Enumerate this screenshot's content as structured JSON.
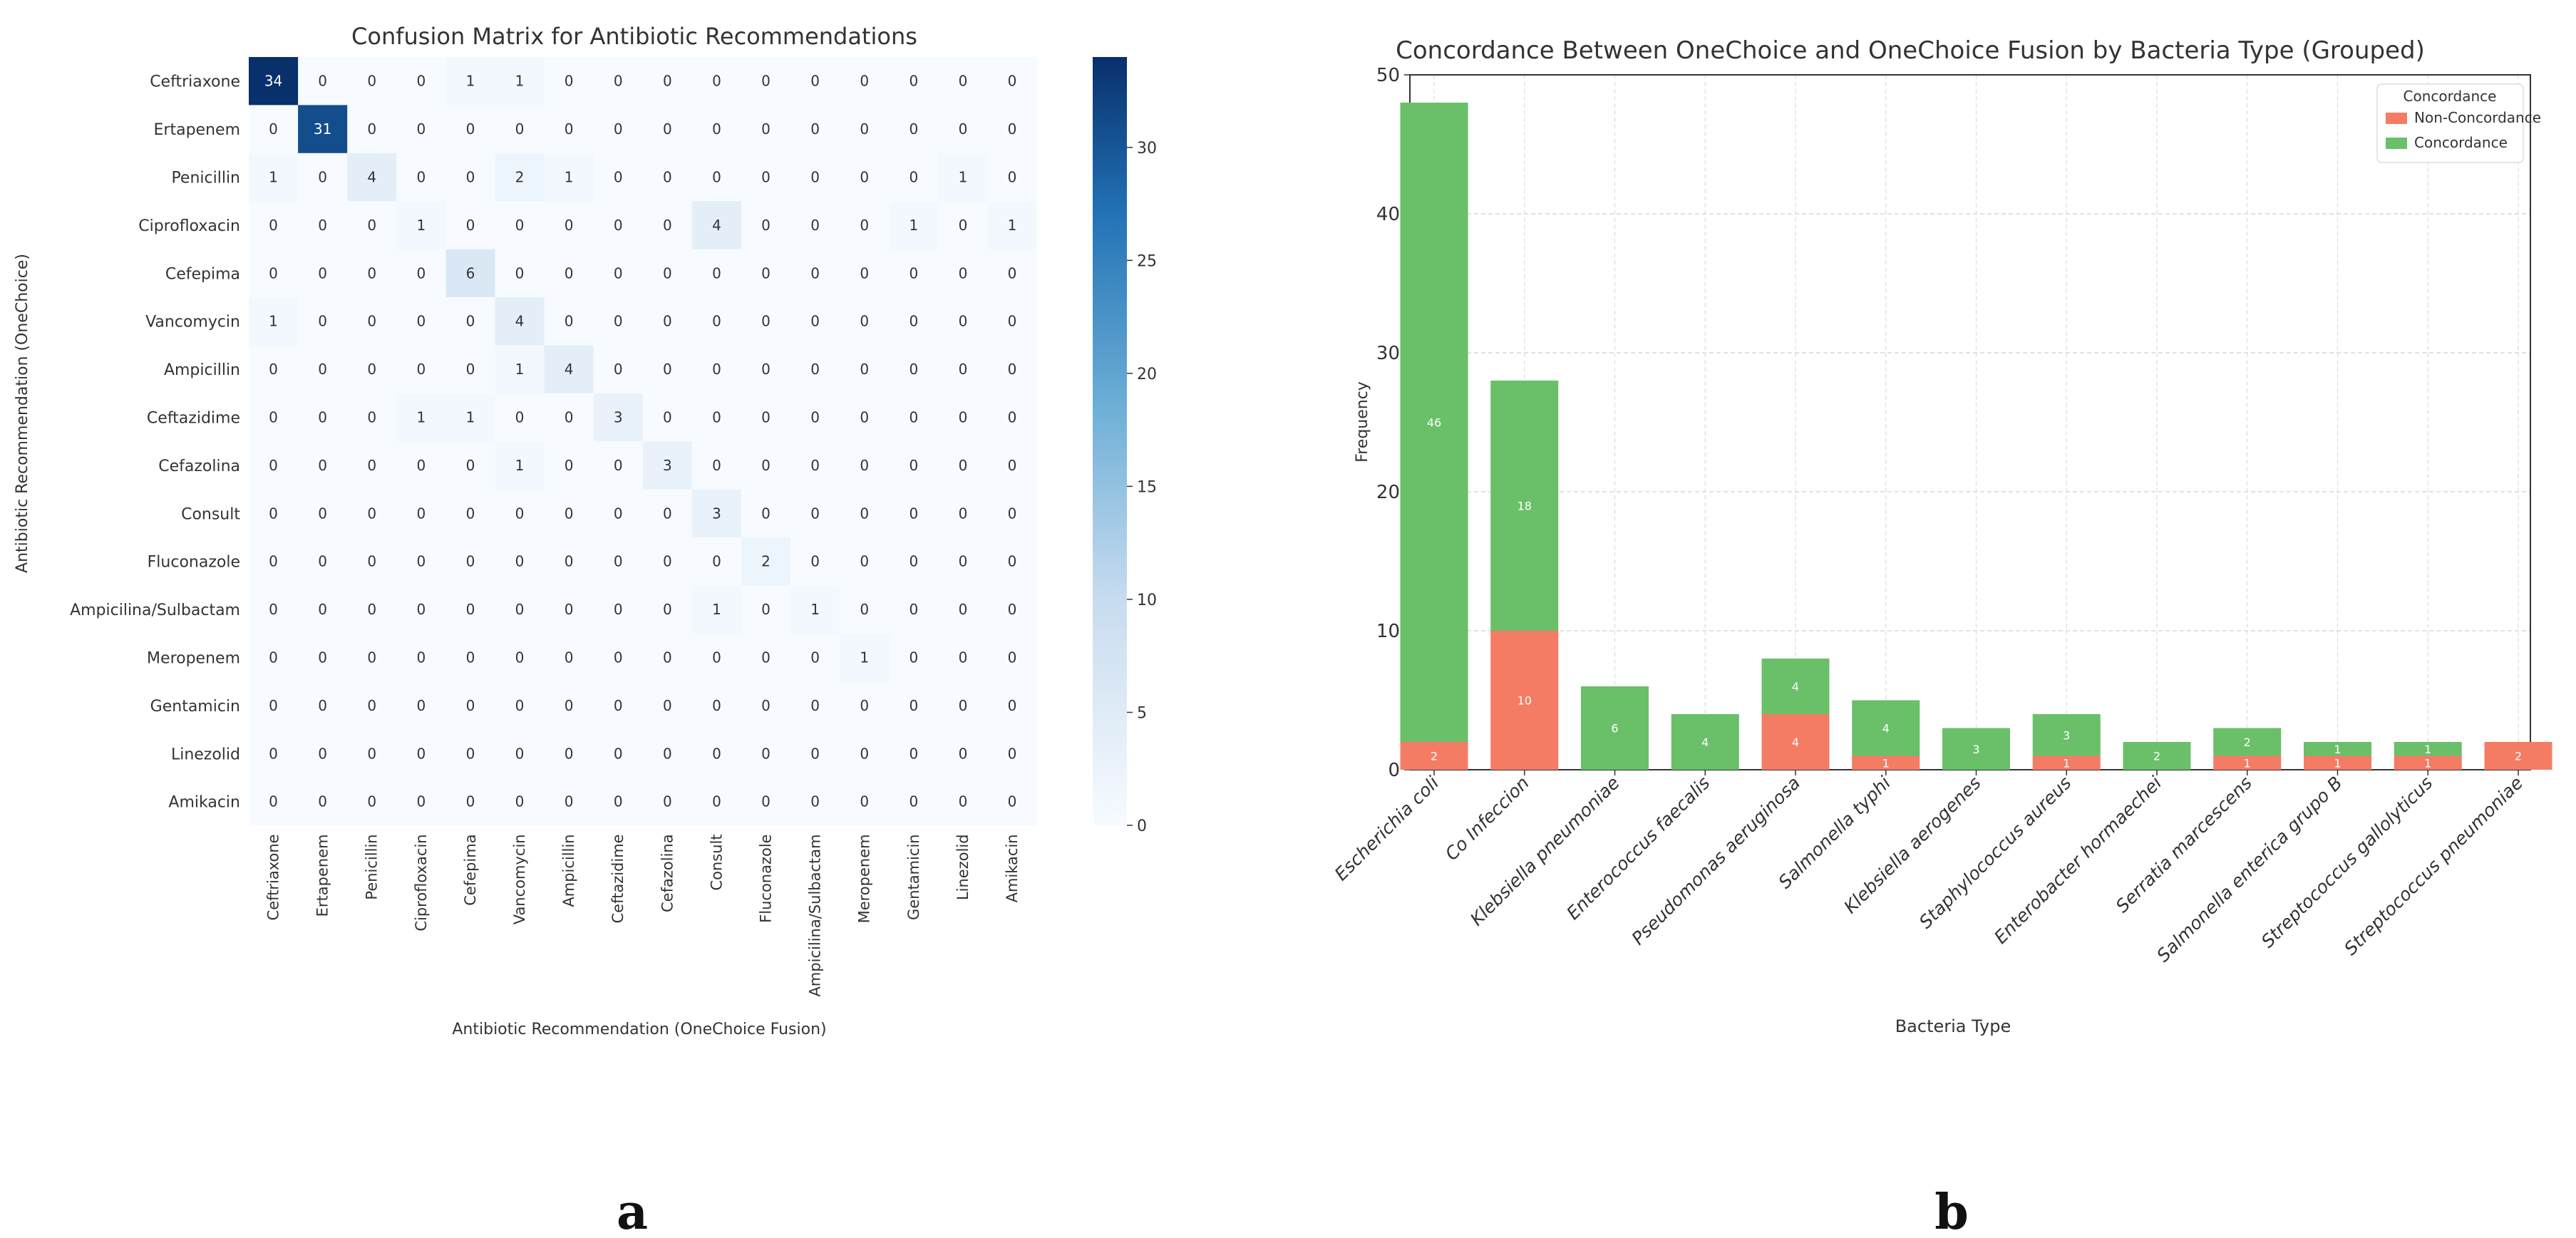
{
  "panel_labels": [
    "a",
    "b"
  ],
  "chart_data": [
    {
      "type": "heatmap",
      "title": "Confusion Matrix for Antibiotic Recommendations",
      "xlabel": "Antibiotic Recommendation (OneChoice Fusion)",
      "ylabel": "Antibiotic Recommendation (OneChoice)",
      "row_labels": [
        "Ceftriaxone",
        "Ertapenem",
        "Penicillin",
        "Ciprofloxacin",
        "Cefepima",
        "Vancomycin",
        "Ampicillin",
        "Ceftazidime",
        "Cefazolina",
        "Consult",
        "Fluconazole",
        "Ampicilina/Sulbactam",
        "Meropenem",
        "Gentamicin",
        "Linezolid",
        "Amikacin"
      ],
      "col_labels": [
        "Ceftriaxone",
        "Ertapenem",
        "Penicillin",
        "Ciprofloxacin",
        "Cefepima",
        "Vancomycin",
        "Ampicillin",
        "Ceftazidime",
        "Cefazolina",
        "Consult",
        "Fluconazole",
        "Ampicilina/Sulbactam",
        "Meropenem",
        "Gentamicin",
        "Linezolid",
        "Amikacin"
      ],
      "matrix": [
        [
          34,
          0,
          0,
          0,
          1,
          1,
          0,
          0,
          0,
          0,
          0,
          0,
          0,
          0,
          0,
          0
        ],
        [
          0,
          31,
          0,
          0,
          0,
          0,
          0,
          0,
          0,
          0,
          0,
          0,
          0,
          0,
          0,
          0
        ],
        [
          1,
          0,
          4,
          0,
          0,
          2,
          1,
          0,
          0,
          0,
          0,
          0,
          0,
          0,
          1,
          0
        ],
        [
          0,
          0,
          0,
          1,
          0,
          0,
          0,
          0,
          0,
          4,
          0,
          0,
          0,
          1,
          0,
          1
        ],
        [
          0,
          0,
          0,
          0,
          6,
          0,
          0,
          0,
          0,
          0,
          0,
          0,
          0,
          0,
          0,
          0
        ],
        [
          1,
          0,
          0,
          0,
          0,
          4,
          0,
          0,
          0,
          0,
          0,
          0,
          0,
          0,
          0,
          0
        ],
        [
          0,
          0,
          0,
          0,
          0,
          1,
          4,
          0,
          0,
          0,
          0,
          0,
          0,
          0,
          0,
          0
        ],
        [
          0,
          0,
          0,
          1,
          1,
          0,
          0,
          3,
          0,
          0,
          0,
          0,
          0,
          0,
          0,
          0
        ],
        [
          0,
          0,
          0,
          0,
          0,
          1,
          0,
          0,
          3,
          0,
          0,
          0,
          0,
          0,
          0,
          0
        ],
        [
          0,
          0,
          0,
          0,
          0,
          0,
          0,
          0,
          0,
          3,
          0,
          0,
          0,
          0,
          0,
          0
        ],
        [
          0,
          0,
          0,
          0,
          0,
          0,
          0,
          0,
          0,
          0,
          2,
          0,
          0,
          0,
          0,
          0
        ],
        [
          0,
          0,
          0,
          0,
          0,
          0,
          0,
          0,
          0,
          1,
          0,
          1,
          0,
          0,
          0,
          0
        ],
        [
          0,
          0,
          0,
          0,
          0,
          0,
          0,
          0,
          0,
          0,
          0,
          0,
          1,
          0,
          0,
          0
        ],
        [
          0,
          0,
          0,
          0,
          0,
          0,
          0,
          0,
          0,
          0,
          0,
          0,
          0,
          0,
          0,
          0
        ],
        [
          0,
          0,
          0,
          0,
          0,
          0,
          0,
          0,
          0,
          0,
          0,
          0,
          0,
          0,
          0,
          0
        ],
        [
          0,
          0,
          0,
          0,
          0,
          0,
          0,
          0,
          0,
          0,
          0,
          0,
          0,
          0,
          0,
          0
        ]
      ],
      "colorbar": {
        "min": 0,
        "max": 34,
        "ticks": [
          0,
          5,
          10,
          15,
          20,
          25,
          30
        ]
      },
      "colormap": {
        "low": "#f7fbff",
        "high": "#08306b"
      }
    },
    {
      "type": "bar",
      "stacked": true,
      "title": "Concordance Between OneChoice and OneChoice Fusion by Bacteria Type (Grouped)",
      "xlabel": "Bacteria Type",
      "ylabel": "Frequency",
      "ylim": [
        0,
        50
      ],
      "yticks": [
        0,
        10,
        20,
        30,
        40,
        50
      ],
      "grid": true,
      "categories": [
        "Escherichia coli",
        "Co Infeccion",
        "Klebsiella pneumoniae",
        "Enterococcus faecalis",
        "Pseudomonas aeruginosa",
        "Salmonella typhi",
        "Klebsiella aerogenes",
        "Staphylococcus aureus",
        "Enterobacter hormaechei",
        "Serratia marcescens",
        "Salmonella enterica grupo B",
        "Streptococcus gallolyticus",
        "Streptococcus pneumoniae"
      ],
      "series": [
        {
          "name": "Non-Concordance",
          "color": "#f47c64",
          "values": [
            2,
            10,
            0,
            0,
            4,
            1,
            0,
            1,
            0,
            1,
            1,
            1,
            2
          ]
        },
        {
          "name": "Concordance",
          "color": "#6abf69",
          "values": [
            46,
            18,
            6,
            4,
            4,
            4,
            3,
            3,
            2,
            2,
            1,
            1,
            0
          ]
        }
      ],
      "legend": {
        "title": "Concordance",
        "entries": [
          "Non-Concordance",
          "Concordance"
        ],
        "placement": "top-right"
      }
    }
  ]
}
